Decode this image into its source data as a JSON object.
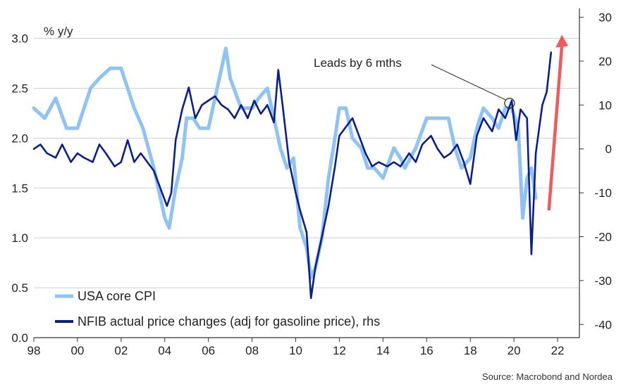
{
  "chart_data": {
    "type": "line",
    "ylabel": "% y/y",
    "x_ticks": [
      "98",
      "00",
      "02",
      "04",
      "06",
      "08",
      "10",
      "12",
      "14",
      "16",
      "18",
      "20",
      "22"
    ],
    "xlim": [
      1998,
      2023
    ],
    "left_axis": {
      "lim": [
        0.0,
        3.3
      ],
      "ticks": [
        "0.0",
        "0.5",
        "1.0",
        "1.5",
        "2.0",
        "2.5",
        "3.0"
      ]
    },
    "right_axis": {
      "lim": [
        -43,
        32
      ],
      "ticks": [
        "-40",
        "-30",
        "-20",
        "-10",
        "0",
        "10",
        "20",
        "30"
      ]
    },
    "grid": true,
    "legend_position": "bottom-left",
    "series": [
      {
        "name": "USA core CPI",
        "axis": "left",
        "color": "#8fc3f3",
        "points": [
          [
            1998.0,
            2.3
          ],
          [
            1998.5,
            2.2
          ],
          [
            1999.0,
            2.4
          ],
          [
            1999.5,
            2.1
          ],
          [
            2000.0,
            2.1
          ],
          [
            2000.3,
            2.3
          ],
          [
            2000.6,
            2.5
          ],
          [
            2001.0,
            2.6
          ],
          [
            2001.5,
            2.7
          ],
          [
            2002.0,
            2.7
          ],
          [
            2002.3,
            2.5
          ],
          [
            2002.6,
            2.3
          ],
          [
            2003.0,
            2.1
          ],
          [
            2003.5,
            1.7
          ],
          [
            2003.8,
            1.4
          ],
          [
            2004.0,
            1.2
          ],
          [
            2004.2,
            1.1
          ],
          [
            2004.5,
            1.5
          ],
          [
            2004.8,
            1.8
          ],
          [
            2005.0,
            2.2
          ],
          [
            2005.3,
            2.2
          ],
          [
            2005.6,
            2.1
          ],
          [
            2006.0,
            2.1
          ],
          [
            2006.3,
            2.4
          ],
          [
            2006.6,
            2.7
          ],
          [
            2006.8,
            2.9
          ],
          [
            2007.0,
            2.6
          ],
          [
            2007.5,
            2.3
          ],
          [
            2008.0,
            2.3
          ],
          [
            2008.3,
            2.4
          ],
          [
            2008.7,
            2.5
          ],
          [
            2009.0,
            2.2
          ],
          [
            2009.3,
            1.9
          ],
          [
            2009.6,
            1.7
          ],
          [
            2009.9,
            1.8
          ],
          [
            2010.2,
            1.1
          ],
          [
            2010.5,
            0.9
          ],
          [
            2010.7,
            0.6
          ],
          [
            2010.9,
            0.7
          ],
          [
            2011.2,
            1.0
          ],
          [
            2011.5,
            1.6
          ],
          [
            2011.8,
            2.0
          ],
          [
            2012.0,
            2.3
          ],
          [
            2012.3,
            2.3
          ],
          [
            2012.6,
            2.0
          ],
          [
            2013.0,
            1.9
          ],
          [
            2013.3,
            1.7
          ],
          [
            2013.6,
            1.7
          ],
          [
            2014.0,
            1.6
          ],
          [
            2014.5,
            1.9
          ],
          [
            2014.8,
            1.8
          ],
          [
            2015.0,
            1.7
          ],
          [
            2015.5,
            1.9
          ],
          [
            2016.0,
            2.2
          ],
          [
            2016.5,
            2.2
          ],
          [
            2016.8,
            2.2
          ],
          [
            2017.0,
            2.2
          ],
          [
            2017.3,
            1.9
          ],
          [
            2017.6,
            1.7
          ],
          [
            2018.0,
            1.8
          ],
          [
            2018.3,
            2.1
          ],
          [
            2018.6,
            2.3
          ],
          [
            2019.0,
            2.2
          ],
          [
            2019.3,
            2.1
          ],
          [
            2019.6,
            2.3
          ],
          [
            2019.9,
            2.3
          ],
          [
            2020.2,
            2.1
          ],
          [
            2020.4,
            1.2
          ],
          [
            2020.6,
            1.6
          ],
          [
            2020.8,
            1.7
          ],
          [
            2021.0,
            1.4
          ]
        ]
      },
      {
        "name": "NFIB actual price changes (adj for gasoline price), rhs",
        "axis": "right",
        "color": "#0a1e8c",
        "points": [
          [
            1998.0,
            0
          ],
          [
            1998.3,
            1
          ],
          [
            1998.6,
            -1
          ],
          [
            1999.0,
            -2
          ],
          [
            1999.3,
            1
          ],
          [
            1999.7,
            -3
          ],
          [
            2000.0,
            -1
          ],
          [
            2000.3,
            -2
          ],
          [
            2000.7,
            -3
          ],
          [
            2001.0,
            1
          ],
          [
            2001.3,
            -1
          ],
          [
            2001.7,
            -4
          ],
          [
            2002.0,
            -3
          ],
          [
            2002.3,
            2
          ],
          [
            2002.6,
            -3
          ],
          [
            2002.9,
            -1
          ],
          [
            2003.2,
            -3
          ],
          [
            2003.5,
            -5
          ],
          [
            2003.8,
            -9
          ],
          [
            2004.1,
            -13
          ],
          [
            2004.3,
            -10
          ],
          [
            2004.5,
            2
          ],
          [
            2004.8,
            9
          ],
          [
            2005.1,
            14
          ],
          [
            2005.4,
            7
          ],
          [
            2005.7,
            10
          ],
          [
            2006.0,
            11
          ],
          [
            2006.3,
            12
          ],
          [
            2006.6,
            10
          ],
          [
            2006.9,
            9
          ],
          [
            2007.2,
            7
          ],
          [
            2007.5,
            10
          ],
          [
            2007.8,
            7
          ],
          [
            2008.1,
            11
          ],
          [
            2008.4,
            8
          ],
          [
            2008.7,
            10
          ],
          [
            2009.0,
            6
          ],
          [
            2009.2,
            18
          ],
          [
            2009.4,
            10
          ],
          [
            2009.7,
            -3
          ],
          [
            2010.0,
            -10
          ],
          [
            2010.2,
            -14
          ],
          [
            2010.5,
            -19
          ],
          [
            2010.7,
            -34
          ],
          [
            2010.9,
            -27
          ],
          [
            2011.2,
            -20
          ],
          [
            2011.5,
            -13
          ],
          [
            2011.8,
            -4
          ],
          [
            2012.0,
            3
          ],
          [
            2012.3,
            5
          ],
          [
            2012.6,
            7
          ],
          [
            2012.9,
            3
          ],
          [
            2013.2,
            -1
          ],
          [
            2013.5,
            -4
          ],
          [
            2013.8,
            -3
          ],
          [
            2014.2,
            -4
          ],
          [
            2014.5,
            -3
          ],
          [
            2014.8,
            -4
          ],
          [
            2015.2,
            -1
          ],
          [
            2015.5,
            -3
          ],
          [
            2015.8,
            1
          ],
          [
            2016.2,
            3
          ],
          [
            2016.5,
            0
          ],
          [
            2016.8,
            -2
          ],
          [
            2017.1,
            -1
          ],
          [
            2017.4,
            1
          ],
          [
            2017.7,
            -3
          ],
          [
            2018.0,
            -8
          ],
          [
            2018.3,
            3
          ],
          [
            2018.6,
            7
          ],
          [
            2019.0,
            4
          ],
          [
            2019.3,
            9
          ],
          [
            2019.6,
            7
          ],
          [
            2019.9,
            11
          ],
          [
            2020.1,
            2
          ],
          [
            2020.3,
            9
          ],
          [
            2020.6,
            7
          ],
          [
            2020.8,
            -24
          ],
          [
            2021.0,
            -1
          ],
          [
            2021.3,
            10
          ],
          [
            2021.5,
            13
          ],
          [
            2021.7,
            22
          ]
        ]
      }
    ],
    "annotations": [
      {
        "text": "Leads by 6 mths",
        "points_to": [
          2019.8,
          2.35
        ]
      }
    ],
    "arrow": {
      "color": "#f05a5a",
      "from": [
        2021.6,
        -14
      ],
      "to": [
        2022.2,
        26
      ],
      "axis": "right"
    },
    "source": "Source: Macrobond and Nordea"
  }
}
